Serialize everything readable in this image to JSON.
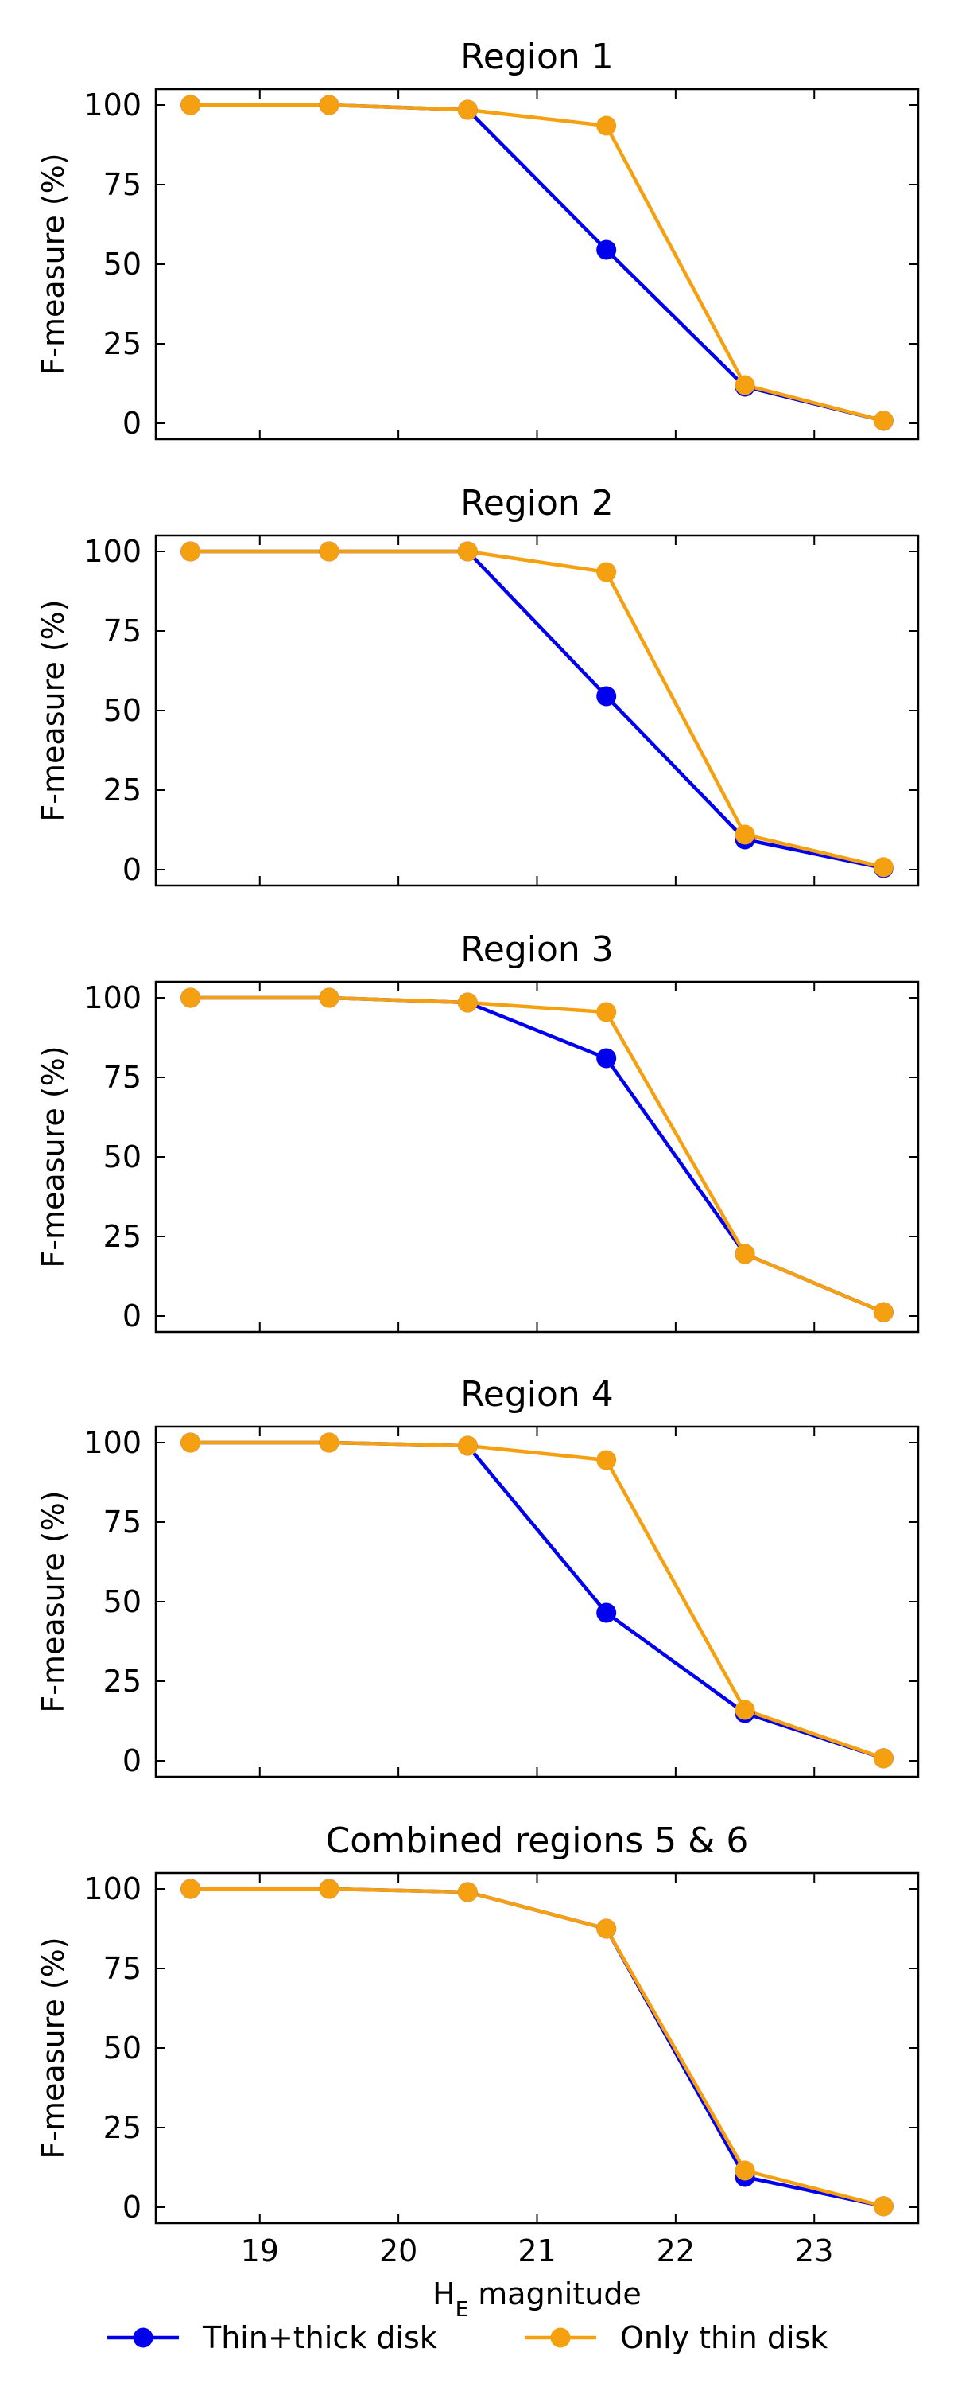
{
  "colors": {
    "thin_thick": "#0000ee",
    "thin_only": "#f5a010"
  },
  "chart_data": [
    {
      "type": "line",
      "title": "Region 1",
      "ylabel": "F-measure (%)",
      "xlabel": "",
      "x": [
        18.5,
        19.5,
        20.5,
        21.5,
        22.5,
        23.5
      ],
      "xlim": [
        18.25,
        23.75
      ],
      "ylim": [
        -5,
        105
      ],
      "yticks": [
        0,
        25,
        50,
        75,
        100
      ],
      "xticks": [
        19,
        20,
        21,
        22,
        23
      ],
      "series": [
        {
          "name": "Thin+thick disk",
          "values": [
            100,
            100,
            98.5,
            54.5,
            11.5,
            0.8
          ]
        },
        {
          "name": "Only thin disk",
          "values": [
            100,
            100,
            98.5,
            93.5,
            12,
            0.8
          ]
        }
      ]
    },
    {
      "type": "line",
      "title": "Region 2",
      "ylabel": "F-measure (%)",
      "xlabel": "",
      "x": [
        18.5,
        19.5,
        20.5,
        21.5,
        22.5,
        23.5
      ],
      "xlim": [
        18.25,
        23.75
      ],
      "ylim": [
        -5,
        105
      ],
      "yticks": [
        0,
        25,
        50,
        75,
        100
      ],
      "xticks": [
        19,
        20,
        21,
        22,
        23
      ],
      "series": [
        {
          "name": "Thin+thick disk",
          "values": [
            100,
            100,
            100,
            54.5,
            9.5,
            0.5
          ]
        },
        {
          "name": "Only thin disk",
          "values": [
            100,
            100,
            100,
            93.5,
            11,
            0.8
          ]
        }
      ]
    },
    {
      "type": "line",
      "title": "Region 3",
      "ylabel": "F-measure (%)",
      "xlabel": "",
      "x": [
        18.5,
        19.5,
        20.5,
        21.5,
        22.5,
        23.5
      ],
      "xlim": [
        18.25,
        23.75
      ],
      "ylim": [
        -5,
        105
      ],
      "yticks": [
        0,
        25,
        50,
        75,
        100
      ],
      "xticks": [
        19,
        20,
        21,
        22,
        23
      ],
      "series": [
        {
          "name": "Thin+thick disk",
          "values": [
            100,
            100,
            98.5,
            81,
            19.5,
            1.2
          ]
        },
        {
          "name": "Only thin disk",
          "values": [
            100,
            100,
            98.5,
            95.5,
            19.5,
            1.2
          ]
        }
      ]
    },
    {
      "type": "line",
      "title": "Region 4",
      "ylabel": "F-measure (%)",
      "xlabel": "",
      "x": [
        18.5,
        19.5,
        20.5,
        21.5,
        22.5,
        23.5
      ],
      "xlim": [
        18.25,
        23.75
      ],
      "ylim": [
        -5,
        105
      ],
      "yticks": [
        0,
        25,
        50,
        75,
        100
      ],
      "xticks": [
        19,
        20,
        21,
        22,
        23
      ],
      "series": [
        {
          "name": "Thin+thick disk",
          "values": [
            100,
            100,
            99,
            46.5,
            15,
            0.8
          ]
        },
        {
          "name": "Only thin disk",
          "values": [
            100,
            100,
            99,
            94.5,
            16,
            0.8
          ]
        }
      ]
    },
    {
      "type": "line",
      "title": "Combined regions 5 & 6",
      "ylabel": "F-measure (%)",
      "xlabel": "H_E magnitude",
      "x": [
        18.5,
        19.5,
        20.5,
        21.5,
        22.5,
        23.5
      ],
      "xlim": [
        18.25,
        23.75
      ],
      "ylim": [
        -5,
        105
      ],
      "yticks": [
        0,
        25,
        50,
        75,
        100
      ],
      "xticks": [
        19,
        20,
        21,
        22,
        23
      ],
      "series": [
        {
          "name": "Thin+thick disk",
          "values": [
            100,
            100,
            99,
            87.5,
            9.5,
            0.3
          ]
        },
        {
          "name": "Only thin disk",
          "values": [
            100,
            100,
            99,
            87.5,
            11.5,
            0.3
          ]
        }
      ]
    }
  ],
  "xlabel": {
    "main": "H",
    "subscript": "E",
    "suffix": " magnitude"
  },
  "legend": [
    {
      "label": "Thin+thick disk",
      "color_key": "thin_thick"
    },
    {
      "label": "Only thin disk",
      "color_key": "thin_only"
    }
  ]
}
